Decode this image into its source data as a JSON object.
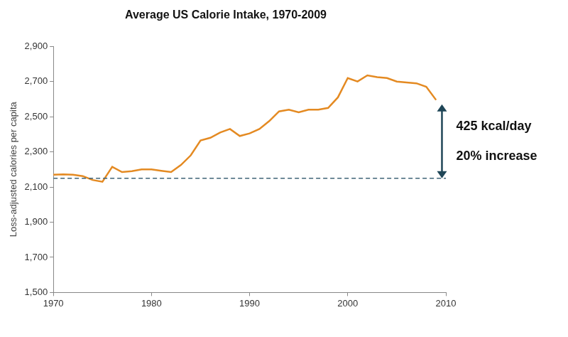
{
  "chart_data": {
    "type": "line",
    "title": "Average US Calorie Intake, 1970-2009",
    "y_label": "Loss-adjusted calories per capita",
    "x": [
      1970,
      1971,
      1972,
      1973,
      1974,
      1975,
      1976,
      1977,
      1978,
      1979,
      1980,
      1981,
      1982,
      1983,
      1984,
      1985,
      1986,
      1987,
      1988,
      1989,
      1990,
      1991,
      1992,
      1993,
      1994,
      1995,
      1996,
      1997,
      1998,
      1999,
      2000,
      2001,
      2002,
      2003,
      2004,
      2005,
      2006,
      2007,
      2008,
      2009
    ],
    "values": [
      2170,
      2172,
      2170,
      2162,
      2140,
      2130,
      2215,
      2185,
      2190,
      2200,
      2200,
      2192,
      2185,
      2225,
      2280,
      2365,
      2380,
      2410,
      2430,
      2390,
      2405,
      2430,
      2475,
      2530,
      2540,
      2525,
      2540,
      2540,
      2550,
      2610,
      2720,
      2700,
      2735,
      2725,
      2720,
      2700,
      2695,
      2690,
      2670,
      2595
    ],
    "color": "#e48a22",
    "xlim": [
      1970,
      2010
    ],
    "xticks": [
      1970,
      1980,
      1990,
      2000,
      2010
    ],
    "ylim": [
      1500,
      2900
    ],
    "yticks": [
      {
        "value": 1500,
        "label": "1,500"
      },
      {
        "value": 1700,
        "label": "1,700"
      },
      {
        "value": 1900,
        "label": "1,900"
      },
      {
        "value": 2100,
        "label": "2,100"
      },
      {
        "value": 2300,
        "label": "2,300"
      },
      {
        "value": 2500,
        "label": "2,500"
      },
      {
        "value": 2700,
        "label": "2,700"
      },
      {
        "value": 2900,
        "label": "2,900"
      }
    ],
    "grid": false,
    "reference_line": {
      "value": 2150,
      "line_style": "dashed"
    },
    "annotations": [
      {
        "text": [
          "425 kcal/day",
          "20% increase"
        ],
        "x": 2009.6,
        "y_from": 2150,
        "y_to": 2570
      }
    ]
  }
}
